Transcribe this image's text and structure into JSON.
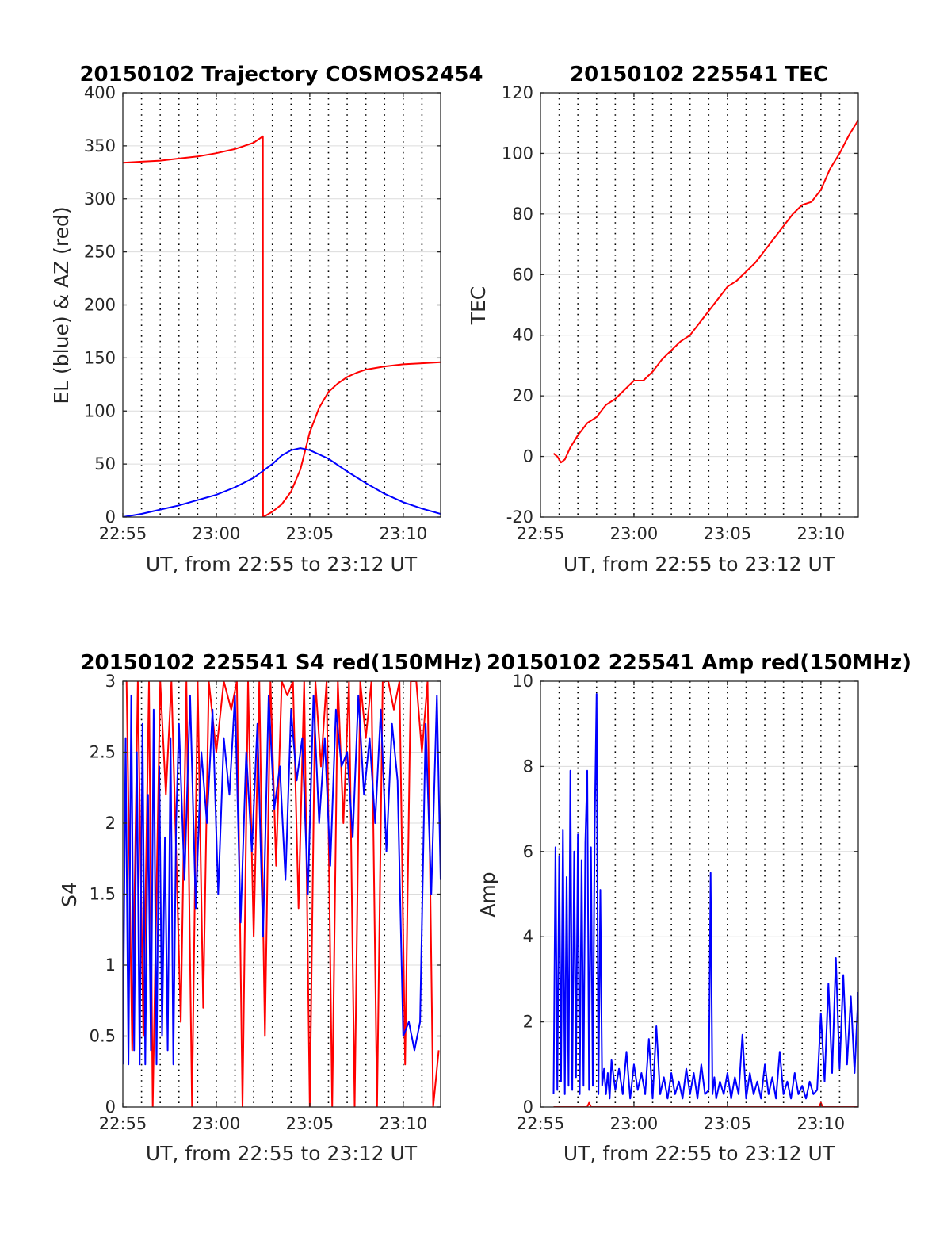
{
  "chart_data": [
    {
      "id": "traj",
      "type": "line",
      "title": "20150102 Trajectory COSMOS2454",
      "xlabel": "UT, from 22:55 to 23:12 UT",
      "ylabel": "EL (blue) & AZ (red)",
      "xlim": [
        0,
        17
      ],
      "ylim": [
        0,
        400
      ],
      "yticks": [
        0,
        50,
        100,
        150,
        200,
        250,
        300,
        350,
        400
      ],
      "xticks": [
        {
          "v": 0,
          "label": "22:55"
        },
        {
          "v": 5,
          "label": "23:00"
        },
        {
          "v": 10,
          "label": "23:05"
        },
        {
          "v": 15,
          "label": "23:10"
        }
      ],
      "grid": "dotted vertical lines every minute, light horizontal lines at y ticks",
      "series": [
        {
          "color": "#ff0000",
          "x": [
            0.0,
            1.0,
            2.0,
            3.0,
            4.0,
            5.0,
            6.0,
            6.5,
            7.0,
            7.49,
            7.5,
            7.6,
            8.0,
            8.5,
            9.0,
            9.5,
            10.0,
            10.5,
            11.0,
            11.5,
            12.0,
            12.5,
            13.0,
            14.0,
            15.0,
            16.0,
            17.0
          ],
          "y": [
            334,
            335,
            336,
            338,
            340,
            343,
            347,
            350,
            353,
            359,
            0,
            1,
            5,
            12,
            24,
            45,
            80,
            103,
            118,
            126,
            132,
            136,
            139,
            142,
            144,
            145,
            146
          ]
        },
        {
          "color": "#0000ff",
          "x": [
            0.0,
            1.0,
            2.0,
            3.0,
            4.0,
            5.0,
            6.0,
            7.0,
            8.0,
            8.5,
            9.0,
            9.5,
            10.0,
            11.0,
            12.0,
            13.0,
            14.0,
            15.0,
            16.0,
            17.0
          ],
          "y": [
            0,
            3,
            7,
            11,
            16,
            21,
            28,
            37,
            50,
            58,
            63,
            65,
            63,
            55,
            43,
            32,
            22,
            14,
            8,
            3
          ]
        }
      ]
    },
    {
      "id": "tec",
      "type": "line",
      "title": "20150102 225541 TEC",
      "xlabel": "UT, from 22:55 to 23:12 UT",
      "ylabel": "TEC",
      "xlim": [
        0,
        17
      ],
      "ylim": [
        -20,
        120
      ],
      "yticks": [
        -20,
        0,
        20,
        40,
        60,
        80,
        100,
        120
      ],
      "xticks": [
        {
          "v": 0,
          "label": "22:55"
        },
        {
          "v": 5,
          "label": "23:00"
        },
        {
          "v": 10,
          "label": "23:05"
        },
        {
          "v": 15,
          "label": "23:10"
        }
      ],
      "grid": "dotted vertical lines every minute, light horizontal lines at y ticks",
      "series": [
        {
          "color": "#ff0000",
          "x": [
            0.7,
            0.9,
            1.1,
            1.3,
            1.6,
            2.0,
            2.5,
            3.0,
            3.5,
            4.0,
            4.5,
            5.0,
            5.5,
            6.0,
            6.5,
            7.0,
            7.5,
            8.0,
            8.5,
            9.0,
            9.5,
            10.0,
            10.5,
            11.0,
            11.5,
            12.0,
            12.5,
            13.0,
            13.5,
            14.0,
            14.5,
            15.0,
            15.5,
            16.0,
            16.5,
            17.0
          ],
          "y": [
            1,
            0,
            -2,
            -1,
            3,
            7,
            11,
            13,
            17,
            19,
            22,
            25,
            25,
            28,
            32,
            35,
            38,
            40,
            44,
            48,
            52,
            56,
            58,
            61,
            64,
            68,
            72,
            76,
            80,
            83,
            84,
            88,
            95,
            100,
            106,
            111
          ]
        }
      ]
    },
    {
      "id": "s4",
      "type": "line",
      "title": "20150102 225541 S4 red(150MHz)",
      "xlabel": "UT, from 22:55 to 23:12 UT",
      "ylabel": "S4",
      "xlim": [
        0,
        17
      ],
      "ylim": [
        0,
        3
      ],
      "yticks": [
        0,
        0.5,
        1,
        1.5,
        2,
        2.5,
        3
      ],
      "ytick_labels": [
        "0",
        "0.5",
        "1",
        "1.5",
        "2",
        "2.5",
        "3"
      ],
      "xticks": [
        {
          "v": 0,
          "label": "22:55"
        },
        {
          "v": 5,
          "label": "23:00"
        },
        {
          "v": 10,
          "label": "23:05"
        },
        {
          "v": 15,
          "label": "23:10"
        }
      ],
      "grid": "dotted vertical lines every minute, light horizontal lines at y ticks",
      "series": [
        {
          "color": "#ff0000",
          "x": [
            0.2,
            0.5,
            0.8,
            1.1,
            1.4,
            1.6,
            2.0,
            2.3,
            2.6,
            3.1,
            3.4,
            3.7,
            4.0,
            4.3,
            4.6,
            5.0,
            5.4,
            5.8,
            6.1,
            6.4,
            6.7,
            7.0,
            7.3,
            7.6,
            7.9,
            8.2,
            8.5,
            8.8,
            9.1,
            9.4,
            9.7,
            10.0,
            10.3,
            10.6,
            10.9,
            11.2,
            11.5,
            11.8,
            12.1,
            12.4,
            12.7,
            13.0,
            13.3,
            13.6,
            13.9,
            14.2,
            14.5,
            14.8,
            15.1,
            15.4,
            15.7,
            16.0,
            16.3,
            16.6,
            16.9
          ],
          "y": [
            3.0,
            0.4,
            3.0,
            0.5,
            3.0,
            0.0,
            3.0,
            2.2,
            3.0,
            0.6,
            3.0,
            0.0,
            3.0,
            0.7,
            3.0,
            2.5,
            3.0,
            2.8,
            3.0,
            0.0,
            3.0,
            1.2,
            3.0,
            0.5,
            3.0,
            1.7,
            3.0,
            2.9,
            3.0,
            1.4,
            3.0,
            0.0,
            3.0,
            2.4,
            3.0,
            0.0,
            3.0,
            2.0,
            3.0,
            0.0,
            3.0,
            2.6,
            3.0,
            0.0,
            3.0,
            3.0,
            2.8,
            3.0,
            0.3,
            3.0,
            3.0,
            2.5,
            3.0,
            0.0,
            0.4
          ]
        },
        {
          "color": "#0000ff",
          "x": [
            0.0,
            0.15,
            0.3,
            0.45,
            0.6,
            0.75,
            0.9,
            1.05,
            1.2,
            1.35,
            1.5,
            1.65,
            1.8,
            1.95,
            2.1,
            2.25,
            2.4,
            2.55,
            2.7,
            2.85,
            3.0,
            3.3,
            3.6,
            3.9,
            4.2,
            4.5,
            4.8,
            5.1,
            5.4,
            5.7,
            6.0,
            6.3,
            6.6,
            6.9,
            7.2,
            7.5,
            7.8,
            8.1,
            8.4,
            8.7,
            9.0,
            9.3,
            9.6,
            9.9,
            10.2,
            10.5,
            10.8,
            11.1,
            11.4,
            11.7,
            12.0,
            12.3,
            12.6,
            12.9,
            13.2,
            13.5,
            13.8,
            14.1,
            14.4,
            14.7,
            15.0,
            15.3,
            15.6,
            15.9,
            16.2,
            16.5,
            16.8,
            17.0
          ],
          "y": [
            0.3,
            2.6,
            0.3,
            2.9,
            0.4,
            2.5,
            0.3,
            2.7,
            0.3,
            2.2,
            0.4,
            2.8,
            0.3,
            2.4,
            0.5,
            1.9,
            0.4,
            2.6,
            0.3,
            2.0,
            2.7,
            1.6,
            2.9,
            1.4,
            2.5,
            2.0,
            2.8,
            1.5,
            2.6,
            2.2,
            2.9,
            1.3,
            2.5,
            1.8,
            2.7,
            1.2,
            2.9,
            2.1,
            2.4,
            1.6,
            2.8,
            2.3,
            2.6,
            1.5,
            2.9,
            2.0,
            2.6,
            1.7,
            2.8,
            2.4,
            2.5,
            1.9,
            2.9,
            2.2,
            2.6,
            2.0,
            2.8,
            1.8,
            2.7,
            2.3,
            0.5,
            0.6,
            0.4,
            0.6,
            2.7,
            1.5,
            2.9,
            1.6
          ]
        }
      ]
    },
    {
      "id": "amp",
      "type": "line",
      "title": "20150102 225541 Amp red(150MHz)",
      "xlabel": "UT, from 22:55 to 23:12 UT",
      "ylabel": "Amp",
      "xlim": [
        0,
        17
      ],
      "ylim": [
        0,
        10
      ],
      "yticks": [
        0,
        2,
        4,
        6,
        8,
        10
      ],
      "xticks": [
        {
          "v": 0,
          "label": "22:55"
        },
        {
          "v": 5,
          "label": "23:00"
        },
        {
          "v": 10,
          "label": "23:05"
        },
        {
          "v": 15,
          "label": "23:10"
        }
      ],
      "grid": "dotted vertical lines every minute, light horizontal lines at y ticks",
      "series": [
        {
          "color": "#ff0000",
          "x": [
            0.7,
            2.5,
            2.6,
            2.7,
            14.0,
            14.9,
            15.0,
            15.1,
            17.0
          ],
          "y": [
            0,
            0,
            0.1,
            0,
            0,
            0,
            0.1,
            0,
            0
          ]
        },
        {
          "color": "#0000ff",
          "x": [
            0.7,
            0.8,
            0.9,
            1.0,
            1.1,
            1.2,
            1.3,
            1.4,
            1.5,
            1.6,
            1.7,
            1.8,
            1.9,
            2.0,
            2.1,
            2.2,
            2.3,
            2.4,
            2.5,
            2.6,
            2.7,
            2.8,
            2.9,
            3.0,
            3.1,
            3.2,
            3.3,
            3.4,
            3.5,
            3.6,
            3.7,
            3.8,
            4.0,
            4.2,
            4.4,
            4.6,
            4.8,
            5.0,
            5.2,
            5.4,
            5.6,
            5.8,
            6.0,
            6.2,
            6.4,
            6.6,
            6.8,
            7.0,
            7.2,
            7.4,
            7.6,
            7.8,
            8.0,
            8.2,
            8.4,
            8.6,
            8.8,
            9.0,
            9.1,
            9.2,
            9.3,
            9.4,
            9.6,
            9.8,
            10.0,
            10.2,
            10.4,
            10.6,
            10.8,
            11.0,
            11.2,
            11.4,
            11.6,
            11.8,
            12.0,
            12.2,
            12.4,
            12.6,
            12.8,
            13.0,
            13.2,
            13.4,
            13.6,
            13.8,
            14.0,
            14.2,
            14.4,
            14.6,
            14.8,
            15.0,
            15.2,
            15.4,
            15.6,
            15.8,
            16.0,
            16.2,
            16.4,
            16.6,
            16.8,
            17.0
          ],
          "y": [
            0.3,
            6.1,
            0.4,
            5.9,
            0.6,
            6.5,
            0.3,
            5.4,
            0.5,
            7.9,
            0.4,
            6.0,
            0.7,
            6.4,
            0.3,
            5.8,
            0.5,
            6.2,
            7.9,
            0.4,
            6.1,
            0.5,
            6.6,
            9.7,
            0.3,
            5.1,
            0.5,
            0.9,
            0.3,
            0.8,
            0.2,
            1.1,
            0.4,
            0.9,
            0.3,
            1.3,
            0.2,
            1.0,
            0.4,
            0.8,
            0.3,
            1.6,
            0.2,
            1.9,
            0.3,
            0.7,
            0.2,
            0.8,
            0.3,
            0.6,
            0.2,
            0.9,
            0.3,
            0.8,
            0.2,
            1.0,
            0.3,
            0.4,
            5.5,
            0.3,
            0.7,
            0.2,
            0.6,
            0.3,
            0.8,
            0.2,
            0.7,
            0.3,
            1.7,
            0.2,
            0.8,
            0.3,
            0.6,
            0.2,
            1.0,
            0.3,
            0.7,
            0.2,
            1.3,
            0.3,
            0.6,
            0.2,
            0.8,
            0.3,
            0.5,
            0.2,
            0.6,
            0.3,
            0.4,
            2.2,
            0.6,
            2.9,
            0.8,
            3.5,
            0.9,
            3.1,
            1.0,
            2.6,
            0.8,
            2.7
          ]
        }
      ]
    }
  ]
}
